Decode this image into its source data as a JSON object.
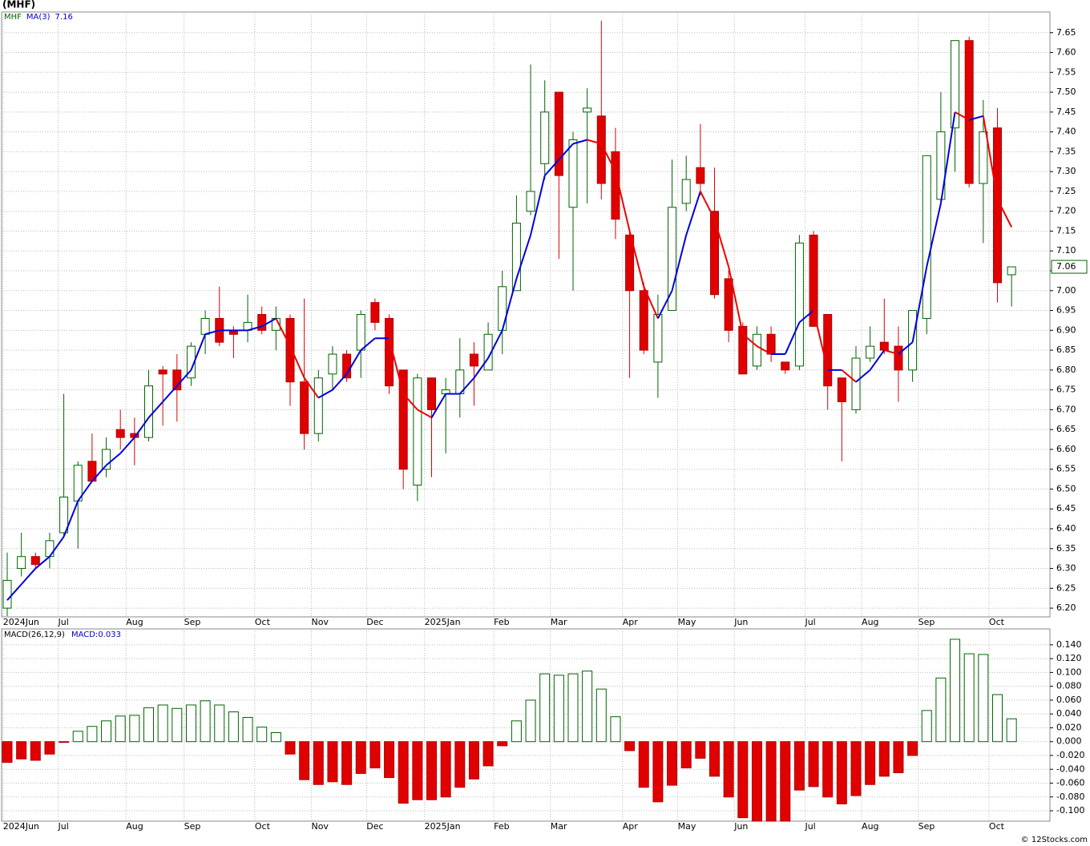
{
  "chart_data": [
    {
      "type": "candlestick",
      "title": "(MHF)",
      "symbol": "MHF",
      "up_color": "#006400",
      "down_color": "#e00000",
      "open": [
        6.2,
        6.3,
        6.33,
        6.33,
        6.39,
        6.47,
        6.57,
        6.55,
        6.65,
        6.64,
        6.63,
        6.8,
        6.8,
        6.78,
        6.89,
        6.93,
        6.9,
        6.9,
        6.94,
        6.9,
        6.93,
        6.77,
        6.64,
        6.79,
        6.84,
        6.85,
        6.97,
        6.93,
        6.8,
        6.51,
        6.78,
        6.74,
        6.74,
        6.84,
        6.8,
        6.9,
        7.0,
        7.2,
        7.32,
        7.5,
        7.21,
        7.45,
        7.44,
        7.35,
        7.14,
        7.0,
        6.82,
        6.95,
        7.22,
        7.31,
        7.2,
        7.03,
        6.91,
        6.81,
        6.89,
        6.82,
        6.81,
        7.14,
        6.94,
        6.78,
        6.7,
        6.83,
        6.87,
        6.86,
        6.8,
        6.93,
        7.23,
        7.41,
        7.63,
        7.27,
        7.41,
        7.04
      ],
      "high": [
        6.34,
        6.39,
        6.34,
        6.39,
        6.74,
        6.57,
        6.64,
        6.63,
        6.7,
        6.68,
        6.8,
        6.81,
        6.84,
        6.87,
        6.95,
        7.01,
        6.91,
        6.99,
        6.96,
        6.96,
        6.94,
        6.98,
        6.8,
        6.86,
        6.85,
        6.95,
        6.98,
        6.94,
        6.8,
        6.79,
        6.78,
        6.78,
        6.88,
        6.87,
        6.92,
        7.05,
        7.24,
        7.57,
        7.53,
        7.5,
        7.4,
        7.51,
        7.68,
        7.41,
        7.15,
        7.02,
        6.99,
        7.33,
        7.34,
        7.42,
        7.31,
        7.05,
        6.92,
        6.91,
        6.91,
        6.82,
        7.14,
        7.15,
        6.94,
        6.78,
        6.86,
        6.91,
        6.98,
        6.91,
        6.95,
        7.34,
        7.5,
        7.63,
        7.64,
        7.48,
        7.46,
        7.06
      ],
      "low": [
        6.18,
        6.28,
        6.3,
        6.3,
        6.38,
        6.35,
        6.52,
        6.53,
        6.6,
        6.56,
        6.62,
        6.66,
        6.67,
        6.76,
        6.84,
        6.86,
        6.83,
        6.87,
        6.89,
        6.85,
        6.71,
        6.6,
        6.62,
        6.75,
        6.77,
        6.78,
        6.9,
        6.74,
        6.5,
        6.47,
        6.53,
        6.59,
        6.68,
        6.71,
        6.8,
        6.84,
        7.0,
        7.19,
        7.28,
        7.08,
        7.0,
        7.22,
        7.23,
        7.13,
        6.78,
        6.84,
        6.73,
        6.95,
        7.2,
        7.24,
        6.98,
        6.87,
        6.79,
        6.8,
        6.82,
        6.79,
        6.8,
        6.91,
        6.7,
        6.57,
        6.69,
        6.82,
        6.84,
        6.72,
        6.77,
        6.89,
        7.22,
        7.3,
        7.26,
        7.12,
        6.97,
        6.96
      ],
      "close": [
        6.27,
        6.33,
        6.31,
        6.37,
        6.48,
        6.56,
        6.52,
        6.6,
        6.63,
        6.63,
        6.76,
        6.79,
        6.75,
        6.86,
        6.93,
        6.87,
        6.89,
        6.92,
        6.9,
        6.93,
        6.77,
        6.64,
        6.78,
        6.84,
        6.78,
        6.94,
        6.92,
        6.76,
        6.55,
        6.78,
        6.7,
        6.75,
        6.8,
        6.81,
        6.89,
        7.01,
        7.17,
        7.25,
        7.45,
        7.29,
        7.38,
        7.46,
        7.27,
        7.18,
        7.0,
        6.85,
        6.94,
        7.21,
        7.28,
        7.27,
        6.99,
        6.9,
        6.79,
        6.89,
        6.84,
        6.8,
        7.12,
        6.91,
        6.76,
        6.72,
        6.83,
        6.86,
        6.85,
        6.8,
        6.95,
        7.34,
        7.4,
        7.63,
        7.27,
        7.4,
        7.02,
        7.06
      ],
      "ma": {
        "name": "MA(3)",
        "up_color": "#0000dd",
        "down_color": "#ee0000",
        "values": [
          6.22,
          6.26,
          6.3,
          6.33,
          6.38,
          6.47,
          6.52,
          6.56,
          6.59,
          6.63,
          6.68,
          6.72,
          6.76,
          6.8,
          6.89,
          6.9,
          6.9,
          6.9,
          6.91,
          6.93,
          6.86,
          6.78,
          6.73,
          6.75,
          6.79,
          6.85,
          6.88,
          6.88,
          6.74,
          6.7,
          6.68,
          6.74,
          6.74,
          6.78,
          6.83,
          6.9,
          7.03,
          7.14,
          7.29,
          7.33,
          7.37,
          7.38,
          7.37,
          7.3,
          7.15,
          7.01,
          6.93,
          7.0,
          7.14,
          7.25,
          7.18,
          7.06,
          6.89,
          6.86,
          6.84,
          6.84,
          6.92,
          6.95,
          6.8,
          6.8,
          6.77,
          6.8,
          6.85,
          6.84,
          6.87,
          7.06,
          7.22,
          7.45,
          7.43,
          7.44,
          7.23,
          7.16
        ]
      },
      "ylim": [
        6.178,
        7.702
      ],
      "yticks": [
        {
          "value": 6.2,
          "label": "6.20"
        },
        {
          "value": 6.25,
          "label": "6.25"
        },
        {
          "value": 6.3,
          "label": "6.30"
        },
        {
          "value": 6.35,
          "label": "6.35"
        },
        {
          "value": 6.4,
          "label": "6.40"
        },
        {
          "value": 6.45,
          "label": "6.45"
        },
        {
          "value": 6.5,
          "label": "6.50"
        },
        {
          "value": 6.55,
          "label": "6.55"
        },
        {
          "value": 6.6,
          "label": "6.60"
        },
        {
          "value": 6.65,
          "label": "6.65"
        },
        {
          "value": 6.7,
          "label": "6.70"
        },
        {
          "value": 6.75,
          "label": "6.75"
        },
        {
          "value": 6.8,
          "label": "6.80"
        },
        {
          "value": 6.85,
          "label": "6.85"
        },
        {
          "value": 6.9,
          "label": "6.90"
        },
        {
          "value": 6.95,
          "label": "6.95"
        },
        {
          "value": 7.0,
          "label": "7.00"
        },
        {
          "value": 7.05,
          "label": "7.05"
        },
        {
          "value": 7.1,
          "label": "7.10"
        },
        {
          "value": 7.15,
          "label": "7.15"
        },
        {
          "value": 7.2,
          "label": "7.20"
        },
        {
          "value": 7.25,
          "label": "7.25"
        },
        {
          "value": 7.3,
          "label": "7.30"
        },
        {
          "value": 7.35,
          "label": "7.35"
        },
        {
          "value": 7.4,
          "label": "7.40"
        },
        {
          "value": 7.45,
          "label": "7.45"
        },
        {
          "value": 7.5,
          "label": "7.50"
        },
        {
          "value": 7.55,
          "label": "7.55"
        },
        {
          "value": 7.6,
          "label": "7.60"
        },
        {
          "value": 7.65,
          "label": "7.65"
        }
      ],
      "xticks": [
        {
          "value": -0.3,
          "label": "2024Jun"
        },
        {
          "value": 3.6,
          "label": "Jul"
        },
        {
          "value": 8.4,
          "label": "Aug"
        },
        {
          "value": 12.5,
          "label": "Sep"
        },
        {
          "value": 17.5,
          "label": "Oct"
        },
        {
          "value": 21.5,
          "label": "Nov"
        },
        {
          "value": 25.4,
          "label": "Dec"
        },
        {
          "value": 29.5,
          "label": "2025Jan"
        },
        {
          "value": 34.4,
          "label": "Feb"
        },
        {
          "value": 38.4,
          "label": "Mar"
        },
        {
          "value": 43.5,
          "label": "Apr"
        },
        {
          "value": 47.4,
          "label": "May"
        },
        {
          "value": 51.4,
          "label": "Jun"
        },
        {
          "value": 56.4,
          "label": "Jul"
        },
        {
          "value": 60.4,
          "label": "Aug"
        },
        {
          "value": 64.4,
          "label": "Sep"
        },
        {
          "value": 69.4,
          "label": "Oct"
        }
      ],
      "grid": true
    },
    {
      "type": "bar",
      "title": "MACD(26,12,9)",
      "value_name": "MACD:",
      "up_color": "#006400",
      "down_color": "#e00000",
      "values": [
        -0.03,
        -0.025,
        -0.027,
        -0.018,
        -0.001,
        0.015,
        0.022,
        0.03,
        0.037,
        0.038,
        0.049,
        0.053,
        0.048,
        0.053,
        0.059,
        0.053,
        0.043,
        0.035,
        0.021,
        0.013,
        -0.018,
        -0.055,
        -0.062,
        -0.058,
        -0.062,
        -0.046,
        -0.038,
        -0.052,
        -0.089,
        -0.084,
        -0.084,
        -0.08,
        -0.066,
        -0.054,
        -0.035,
        -0.006,
        0.03,
        0.06,
        0.098,
        0.096,
        0.098,
        0.102,
        0.076,
        0.036,
        -0.013,
        -0.066,
        -0.087,
        -0.063,
        -0.038,
        -0.024,
        -0.05,
        -0.08,
        -0.11,
        -0.115,
        -0.115,
        -0.115,
        -0.07,
        -0.065,
        -0.08,
        -0.09,
        -0.078,
        -0.062,
        -0.05,
        -0.045,
        -0.02,
        0.045,
        0.092,
        0.148,
        0.127,
        0.126,
        0.068,
        0.033
      ],
      "ylim": [
        -0.115,
        0.163
      ],
      "yticks": [
        {
          "value": -0.1,
          "label": "-0.100"
        },
        {
          "value": -0.08,
          "label": "-0.080"
        },
        {
          "value": -0.06,
          "label": "-0.060"
        },
        {
          "value": -0.04,
          "label": "-0.040"
        },
        {
          "value": -0.02,
          "label": "-0.020"
        },
        {
          "value": 0,
          "label": "0.000"
        },
        {
          "value": 0.02,
          "label": "0.020"
        },
        {
          "value": 0.04,
          "label": "0.040"
        },
        {
          "value": 0.06,
          "label": "0.060"
        },
        {
          "value": 0.08,
          "label": "0.080"
        },
        {
          "value": 0.1,
          "label": "0.100"
        },
        {
          "value": 0.12,
          "label": "0.120"
        },
        {
          "value": 0.14,
          "label": "0.140"
        }
      ],
      "xticks": [
        {
          "value": -0.3,
          "label": "2024Jun"
        },
        {
          "value": 3.6,
          "label": "Jul"
        },
        {
          "value": 8.4,
          "label": "Aug"
        },
        {
          "value": 12.5,
          "label": "Sep"
        },
        {
          "value": 17.5,
          "label": "Oct"
        },
        {
          "value": 21.5,
          "label": "Nov"
        },
        {
          "value": 25.4,
          "label": "Dec"
        },
        {
          "value": 29.5,
          "label": "2025Jan"
        },
        {
          "value": 34.4,
          "label": "Feb"
        },
        {
          "value": 38.4,
          "label": "Mar"
        },
        {
          "value": 43.5,
          "label": "Apr"
        },
        {
          "value": 47.4,
          "label": "May"
        },
        {
          "value": 51.4,
          "label": "Jun"
        },
        {
          "value": 56.4,
          "label": "Jul"
        },
        {
          "value": 60.4,
          "label": "Aug"
        },
        {
          "value": 64.4,
          "label": "Sep"
        },
        {
          "value": 69.4,
          "label": "Oct"
        }
      ],
      "grid": true
    }
  ],
  "source": "© 12Stocks.com"
}
